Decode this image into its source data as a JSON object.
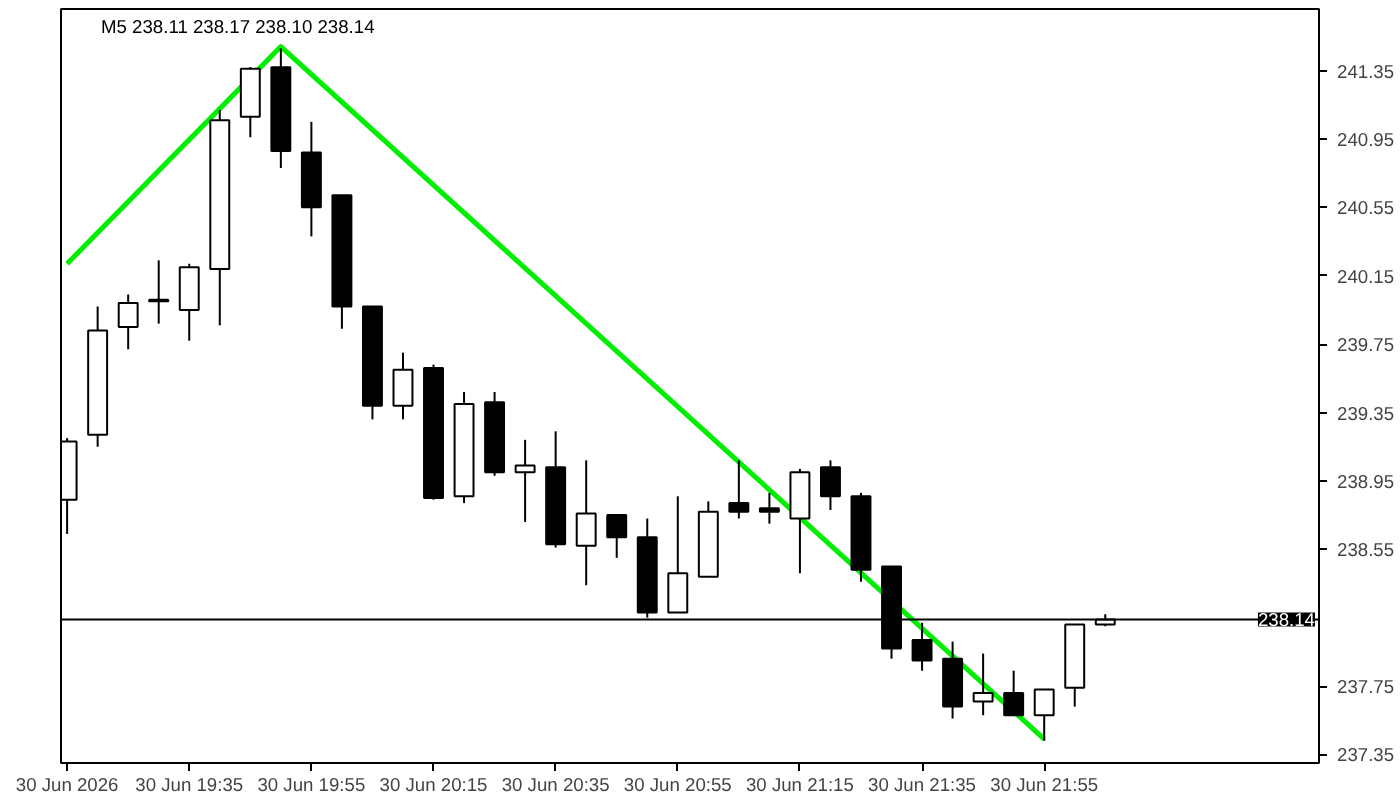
{
  "chart_data": {
    "type": "candlestick",
    "title": "M5  238.11 238.17 238.10 238.14",
    "x": [
      "2026-06-30T19:15",
      "2026-06-30T19:20",
      "2026-06-30T19:25",
      "2026-06-30T19:30",
      "2026-06-30T19:35",
      "2026-06-30T19:40",
      "2026-06-30T19:45",
      "2026-06-30T19:50",
      "2026-06-30T19:55",
      "2026-06-30T20:00",
      "2026-06-30T20:05",
      "2026-06-30T20:10",
      "2026-06-30T20:15",
      "2026-06-30T20:20",
      "2026-06-30T20:25",
      "2026-06-30T20:30",
      "2026-06-30T20:35",
      "2026-06-30T20:40",
      "2026-06-30T20:45",
      "2026-06-30T20:50",
      "2026-06-30T20:55",
      "2026-06-30T21:00",
      "2026-06-30T21:05",
      "2026-06-30T21:10",
      "2026-06-30T21:15",
      "2026-06-30T21:20",
      "2026-06-30T21:25",
      "2026-06-30T21:30",
      "2026-06-30T21:35",
      "2026-06-30T21:40",
      "2026-06-30T21:45",
      "2026-06-30T21:50",
      "2026-06-30T21:55",
      "2026-06-30T22:00",
      "2026-06-30T22:05"
    ],
    "ohlc": [
      [
        238.84,
        239.2,
        238.64,
        239.18
      ],
      [
        239.22,
        239.97,
        239.15,
        239.83
      ],
      [
        239.85,
        240.04,
        239.72,
        239.99
      ],
      [
        240.0,
        240.24,
        239.87,
        240.01
      ],
      [
        239.95,
        240.22,
        239.77,
        240.2
      ],
      [
        240.19,
        241.12,
        239.86,
        241.06
      ],
      [
        241.08,
        241.37,
        240.96,
        241.36
      ],
      [
        241.37,
        241.48,
        240.78,
        240.88
      ],
      [
        240.87,
        241.05,
        240.38,
        240.55
      ],
      [
        240.62,
        240.62,
        239.84,
        239.97
      ],
      [
        239.97,
        239.97,
        239.31,
        239.39
      ],
      [
        239.39,
        239.7,
        239.31,
        239.6
      ],
      [
        239.61,
        239.63,
        238.84,
        238.85
      ],
      [
        238.86,
        239.47,
        238.82,
        239.4
      ],
      [
        239.41,
        239.47,
        238.98,
        239.0
      ],
      [
        239.0,
        239.19,
        238.71,
        239.04
      ],
      [
        239.03,
        239.24,
        238.56,
        238.58
      ],
      [
        238.57,
        239.07,
        238.34,
        238.76
      ],
      [
        238.75,
        238.75,
        238.5,
        238.62
      ],
      [
        238.62,
        238.73,
        238.15,
        238.18
      ],
      [
        238.18,
        238.86,
        238.18,
        238.41
      ],
      [
        238.39,
        238.83,
        238.39,
        238.77
      ],
      [
        238.82,
        239.07,
        238.73,
        238.77
      ],
      [
        238.79,
        238.88,
        238.7,
        238.77
      ],
      [
        238.73,
        239.02,
        238.41,
        239.0
      ],
      [
        239.03,
        239.07,
        238.78,
        238.86
      ],
      [
        238.86,
        238.88,
        238.36,
        238.43
      ],
      [
        238.45,
        238.45,
        237.91,
        237.97
      ],
      [
        238.02,
        238.12,
        237.84,
        237.9
      ],
      [
        237.91,
        238.01,
        237.56,
        237.63
      ],
      [
        237.66,
        237.94,
        237.58,
        237.71
      ],
      [
        237.71,
        237.84,
        237.58,
        237.58
      ],
      [
        237.58,
        237.73,
        237.43,
        237.73
      ],
      [
        237.74,
        238.11,
        237.63,
        238.11
      ],
      [
        238.11,
        238.17,
        238.1,
        238.14
      ]
    ],
    "series": [
      {
        "type": "line",
        "color": "#00ee00",
        "x": [
          "2026-06-30T19:15",
          "2026-06-30T19:50",
          "2026-06-30T21:55"
        ],
        "values": [
          240.22,
          241.49,
          237.44
        ]
      }
    ],
    "xlim": [
      "2026-06-30T19:14",
      "2026-06-30T22:40"
    ],
    "xticks": [
      {
        "value": "2026-06-30T19:15",
        "label": "30 Jun 2026"
      },
      {
        "value": "2026-06-30T19:35",
        "label": "30 Jun 19:35"
      },
      {
        "value": "2026-06-30T19:55",
        "label": "30 Jun 19:55"
      },
      {
        "value": "2026-06-30T20:15",
        "label": "30 Jun 20:15"
      },
      {
        "value": "2026-06-30T20:35",
        "label": "30 Jun 20:35"
      },
      {
        "value": "2026-06-30T20:55",
        "label": "30 Jun 20:55"
      },
      {
        "value": "2026-06-30T21:15",
        "label": "30 Jun 21:15"
      },
      {
        "value": "2026-06-30T21:35",
        "label": "30 Jun 21:35"
      },
      {
        "value": "2026-06-30T21:55",
        "label": "30 Jun 21:55"
      }
    ],
    "ylim": [
      237.3,
      241.71
    ],
    "yticks": [
      {
        "value": 237.35,
        "label": "237.35"
      },
      {
        "value": 237.75,
        "label": "237.75"
      },
      {
        "value": 238.55,
        "label": "238.55"
      },
      {
        "value": 238.95,
        "label": "238.95"
      },
      {
        "value": 239.35,
        "label": "239.35"
      },
      {
        "value": 239.75,
        "label": "239.75"
      },
      {
        "value": 240.15,
        "label": "240.15"
      },
      {
        "value": 240.55,
        "label": "240.55"
      },
      {
        "value": 240.95,
        "label": "240.95"
      },
      {
        "value": 241.35,
        "label": "241.35"
      }
    ],
    "ref_lines": [
      {
        "axis": "y",
        "value": 238.14,
        "label": "238.14",
        "color": "#000000"
      }
    ],
    "grid": false
  }
}
